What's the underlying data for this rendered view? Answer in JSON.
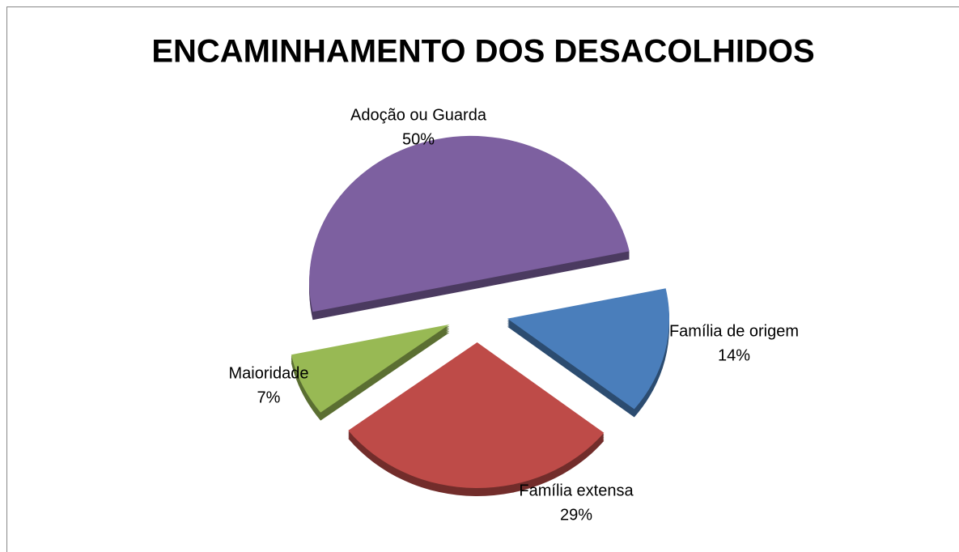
{
  "chart_data": {
    "type": "pie",
    "title": "ENCAMINHAMENTO DOS DESACOLHIDOS",
    "categories": [
      "Família de origem",
      "Família extensa",
      "Maioridade",
      "Adoção ou Guarda"
    ],
    "values": [
      14,
      29,
      7,
      50
    ],
    "value_labels": [
      "14%",
      "29%",
      "7%",
      "50%"
    ],
    "colors": [
      "#4a7ebb",
      "#be4b48",
      "#98b954",
      "#7d60a0"
    ]
  }
}
